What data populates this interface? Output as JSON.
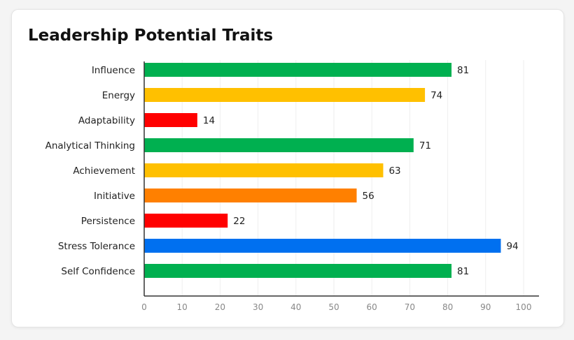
{
  "chart_data": {
    "type": "bar",
    "orientation": "horizontal",
    "title": "Leadership Potential Traits",
    "categories": [
      "Influence",
      "Energy",
      "Adaptability",
      "Analytical Thinking",
      "Achievement",
      "Initiative",
      "Persistence",
      "Stress Tolerance",
      "Self Confidence"
    ],
    "values": [
      81,
      74,
      14,
      71,
      63,
      56,
      22,
      94,
      81
    ],
    "colors": [
      "#00b050",
      "#ffc000",
      "#ff0000",
      "#00b050",
      "#ffc000",
      "#ff8000",
      "#ff0000",
      "#0070f0",
      "#00b050"
    ],
    "xlim": [
      0,
      100
    ],
    "xticks": [
      0,
      10,
      20,
      30,
      40,
      50,
      60,
      70,
      80,
      90,
      100
    ],
    "grid": true,
    "data_labels": true
  }
}
